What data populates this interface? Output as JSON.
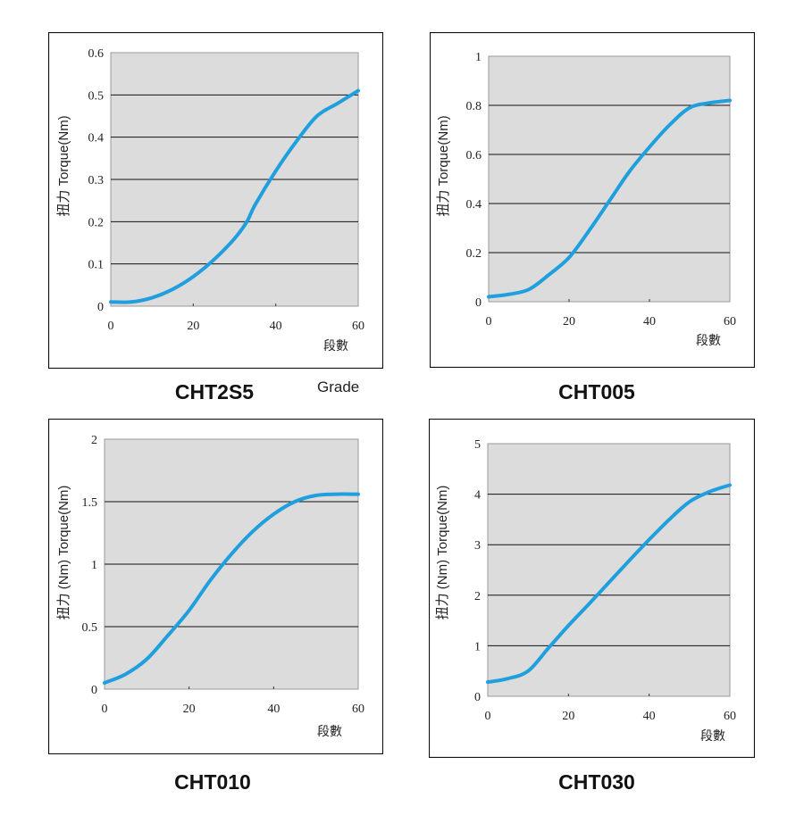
{
  "colors": {
    "line": "#1f9fde",
    "plot_bg": "#dcdcdc",
    "grid": "#111111",
    "frame": "#111111"
  },
  "grade_note": "Grade",
  "chart_data": [
    {
      "type": "line",
      "caption": "CHT2S5",
      "ylabel": "扭力 Torque(Nm)",
      "xlabel": "段數",
      "xlim": [
        0,
        60
      ],
      "ylim": [
        0,
        0.6
      ],
      "xticks": [
        0,
        20,
        40,
        60
      ],
      "yticks": [
        0,
        0.1,
        0.2,
        0.3,
        0.4,
        0.5,
        0.6
      ],
      "ytick_labels": [
        "0",
        "0.1",
        "0.2",
        "0.3",
        "0.4",
        "0.5",
        "0.6"
      ],
      "grid": "horizontal",
      "series": [
        {
          "x": [
            0,
            5,
            10,
            15,
            20,
            25,
            30,
            33,
            35,
            40,
            45,
            50,
            55,
            60
          ],
          "y": [
            0.01,
            0.01,
            0.02,
            0.04,
            0.07,
            0.11,
            0.16,
            0.2,
            0.24,
            0.32,
            0.39,
            0.45,
            0.48,
            0.51
          ]
        }
      ]
    },
    {
      "type": "line",
      "caption": "CHT005",
      "ylabel": "扭力 Torque(Nm)",
      "xlabel": "段數",
      "xlim": [
        0,
        60
      ],
      "ylim": [
        0,
        1
      ],
      "xticks": [
        0,
        20,
        40,
        60
      ],
      "yticks": [
        0,
        0.2,
        0.4,
        0.6,
        0.8,
        1
      ],
      "ytick_labels": [
        "0",
        "0.2",
        "0.4",
        "0.6",
        "0.8",
        "1"
      ],
      "grid": "horizontal",
      "series": [
        {
          "x": [
            0,
            5,
            10,
            15,
            20,
            25,
            30,
            35,
            40,
            45,
            50,
            55,
            60
          ],
          "y": [
            0.02,
            0.03,
            0.05,
            0.11,
            0.18,
            0.29,
            0.41,
            0.53,
            0.63,
            0.72,
            0.79,
            0.81,
            0.82
          ]
        }
      ]
    },
    {
      "type": "line",
      "caption": "CHT010",
      "ylabel": "扭力 (Nm) Torque(Nm)",
      "xlabel": "段數",
      "xlim": [
        0,
        60
      ],
      "ylim": [
        0,
        2
      ],
      "xticks": [
        0,
        20,
        40,
        60
      ],
      "yticks": [
        0,
        0.5,
        1,
        1.5,
        2
      ],
      "ytick_labels": [
        "0",
        "0.5",
        "1",
        "1.5",
        "2"
      ],
      "grid": "horizontal",
      "series": [
        {
          "x": [
            0,
            5,
            10,
            15,
            20,
            25,
            30,
            35,
            40,
            45,
            50,
            55,
            60
          ],
          "y": [
            0.05,
            0.12,
            0.24,
            0.43,
            0.63,
            0.87,
            1.08,
            1.26,
            1.4,
            1.5,
            1.55,
            1.56,
            1.56
          ]
        }
      ]
    },
    {
      "type": "line",
      "caption": "CHT030",
      "ylabel": "扭力 (Nm) Torque(Nm)",
      "xlabel": "段數",
      "xlim": [
        0,
        60
      ],
      "ylim": [
        0,
        5
      ],
      "xticks": [
        0,
        20,
        40,
        60
      ],
      "yticks": [
        0,
        1,
        2,
        3,
        4,
        5
      ],
      "ytick_labels": [
        "0",
        "1",
        "2",
        "3",
        "4",
        "5"
      ],
      "grid": "horizontal",
      "series": [
        {
          "x": [
            0,
            5,
            10,
            15,
            20,
            25,
            30,
            35,
            40,
            45,
            50,
            55,
            60
          ],
          "y": [
            0.28,
            0.35,
            0.5,
            0.95,
            1.4,
            1.82,
            2.25,
            2.68,
            3.1,
            3.5,
            3.85,
            4.05,
            4.18
          ]
        }
      ]
    }
  ]
}
